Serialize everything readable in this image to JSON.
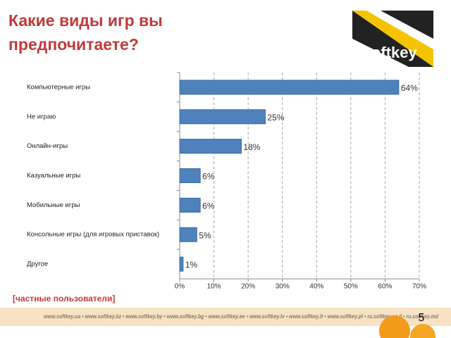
{
  "header": {
    "title_lines": [
      "Какие виды игр вы",
      "предпочитаете?"
    ],
    "logo": "Softkey"
  },
  "chart_data": {
    "type": "bar",
    "orientation": "horizontal",
    "categories": [
      "Компьютерные игры",
      "Не играю",
      "Онлайн-игры",
      "Казуальные игры",
      "Мобильные игры",
      "Консольные игры (для игровых приставок)",
      "Другое"
    ],
    "values": [
      64,
      25,
      18,
      6,
      6,
      5,
      1
    ],
    "value_labels": [
      "64%",
      "25%",
      "18%",
      "6%",
      "6%",
      "5%",
      "1%"
    ],
    "color": "#4f81bd",
    "xlim": [
      0,
      70
    ],
    "xticks": [
      {
        "value": 0,
        "label": "0%"
      },
      {
        "value": 10,
        "label": "10%"
      },
      {
        "value": 20,
        "label": "20%"
      },
      {
        "value": 30,
        "label": "30%"
      },
      {
        "value": 40,
        "label": "40%"
      },
      {
        "value": 50,
        "label": "50%"
      },
      {
        "value": 60,
        "label": "60%"
      },
      {
        "value": 70,
        "label": "70%"
      }
    ],
    "grid": true
  },
  "note": "[частные пользователи]",
  "footer": "www.softkey.ua • www.softkey.kz • www.softkey.by • www.softkey.bg • www.softkey.ee • www.softkey.lv • www.softkey.lt • www.softkey.pl • ru.softkey.co.il • ru.softkey.md",
  "page_number": "5"
}
